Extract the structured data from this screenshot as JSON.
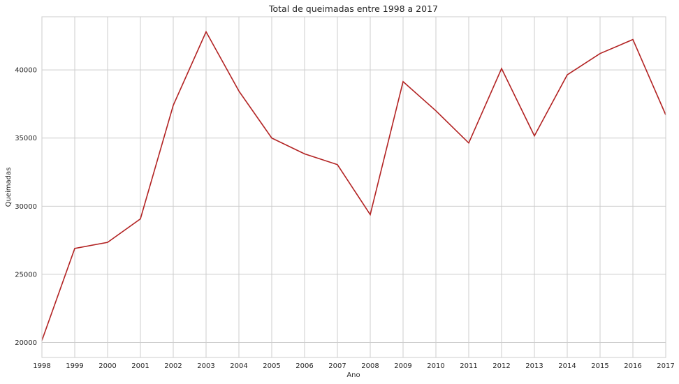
{
  "chart_data": {
    "type": "line",
    "title": "Total de queimadas entre 1998 a 2017",
    "xlabel": "Ano",
    "ylabel": "Queimadas",
    "x": [
      1998,
      1999,
      2000,
      2001,
      2002,
      2003,
      2004,
      2005,
      2006,
      2007,
      2008,
      2009,
      2010,
      2011,
      2012,
      2013,
      2014,
      2015,
      2016,
      2017
    ],
    "series": [
      {
        "values": [
          20150,
          26900,
          27350,
          29070,
          37400,
          42800,
          38450,
          35000,
          33840,
          33050,
          29380,
          39140,
          37000,
          34640,
          40100,
          35160,
          39640,
          41200,
          42230,
          36700
        ],
        "color": "#b22222"
      }
    ],
    "yticks": [
      20000,
      25000,
      30000,
      35000,
      40000
    ],
    "ylim": [
      18900,
      43900
    ],
    "xlim": [
      1998,
      2017
    ],
    "grid": true,
    "legend": "none"
  }
}
